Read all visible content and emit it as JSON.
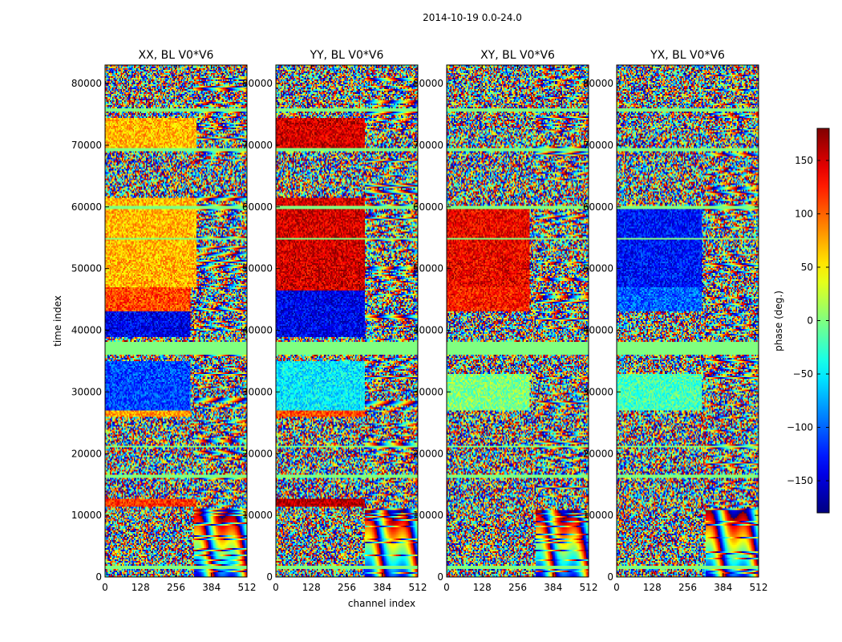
{
  "chart_data": {
    "type": "heatmap",
    "suptitle": "2014-10-19 0.0-24.0",
    "xlabel": "channel index",
    "ylabel": "time index",
    "xlim": [
      0,
      512
    ],
    "ylim": [
      0,
      83000
    ],
    "x_ticks": [
      0,
      128,
      256,
      384,
      512
    ],
    "y_ticks": [
      0,
      10000,
      20000,
      30000,
      40000,
      50000,
      60000,
      70000,
      80000
    ],
    "colorbar": {
      "label": "phase (deg.)",
      "range": [
        -180,
        180
      ],
      "ticks": [
        -150,
        -100,
        -50,
        0,
        50,
        100,
        150
      ],
      "colormap": "jet"
    },
    "panels": [
      {
        "title": "XX, BL V0*V6",
        "regions": [
          {
            "t0": 27000,
            "t1": 35000,
            "c0": 0,
            "c1": 310,
            "phase": -110
          },
          {
            "t0": 26000,
            "t1": 28000,
            "c0": 0,
            "c1": 310,
            "phase": 80
          },
          {
            "t0": 39000,
            "t1": 43000,
            "c0": 0,
            "c1": 310,
            "phase": -140
          },
          {
            "t0": 43000,
            "t1": 47000,
            "c0": 0,
            "c1": 310,
            "phase": 110
          },
          {
            "t0": 47000,
            "t1": 61500,
            "c0": 0,
            "c1": 330,
            "phase": 70
          },
          {
            "t0": 11500,
            "t1": 12600,
            "c0": 0,
            "c1": 330,
            "phase": 120
          },
          {
            "t0": 69000,
            "t1": 74500,
            "c0": 0,
            "c1": 330,
            "phase": 70
          }
        ]
      },
      {
        "title": "YY, BL V0*V6",
        "regions": [
          {
            "t0": 27000,
            "t1": 35000,
            "c0": 0,
            "c1": 320,
            "phase": -50
          },
          {
            "t0": 26000,
            "t1": 28000,
            "c0": 0,
            "c1": 320,
            "phase": 110
          },
          {
            "t0": 39000,
            "t1": 46500,
            "c0": 0,
            "c1": 320,
            "phase": -140
          },
          {
            "t0": 46500,
            "t1": 61500,
            "c0": 0,
            "c1": 320,
            "phase": 150
          },
          {
            "t0": 11500,
            "t1": 12600,
            "c0": 0,
            "c1": 320,
            "phase": 165
          },
          {
            "t0": 69000,
            "t1": 74500,
            "c0": 0,
            "c1": 320,
            "phase": 150
          }
        ]
      },
      {
        "title": "XY, BL V0*V6",
        "regions": [
          {
            "t0": 47000,
            "t1": 60000,
            "c0": 0,
            "c1": 300,
            "phase": 140
          },
          {
            "t0": 43000,
            "t1": 47000,
            "c0": 0,
            "c1": 300,
            "phase": 130
          },
          {
            "t0": 27000,
            "t1": 33000,
            "c0": 0,
            "c1": 300,
            "phase": 0
          }
        ]
      },
      {
        "title": "YX, BL V0*V6",
        "regions": [
          {
            "t0": 47000,
            "t1": 60000,
            "c0": 0,
            "c1": 310,
            "phase": -130
          },
          {
            "t0": 43000,
            "t1": 47000,
            "c0": 0,
            "c1": 310,
            "phase": -100
          },
          {
            "t0": 27000,
            "t1": 33000,
            "c0": 0,
            "c1": 310,
            "phase": -20
          }
        ]
      }
    ],
    "flagged_bands": [
      {
        "t0": 36000,
        "t1": 38000
      },
      {
        "t0": 1200,
        "t1": 1700
      },
      {
        "t0": 16200,
        "t1": 16600
      },
      {
        "t0": 21000,
        "t1": 21300
      },
      {
        "t0": 54600,
        "t1": 55000
      },
      {
        "t0": 59700,
        "t1": 60100
      },
      {
        "t0": 69000,
        "t1": 69500
      },
      {
        "t0": 75500,
        "t1": 75900
      }
    ]
  }
}
